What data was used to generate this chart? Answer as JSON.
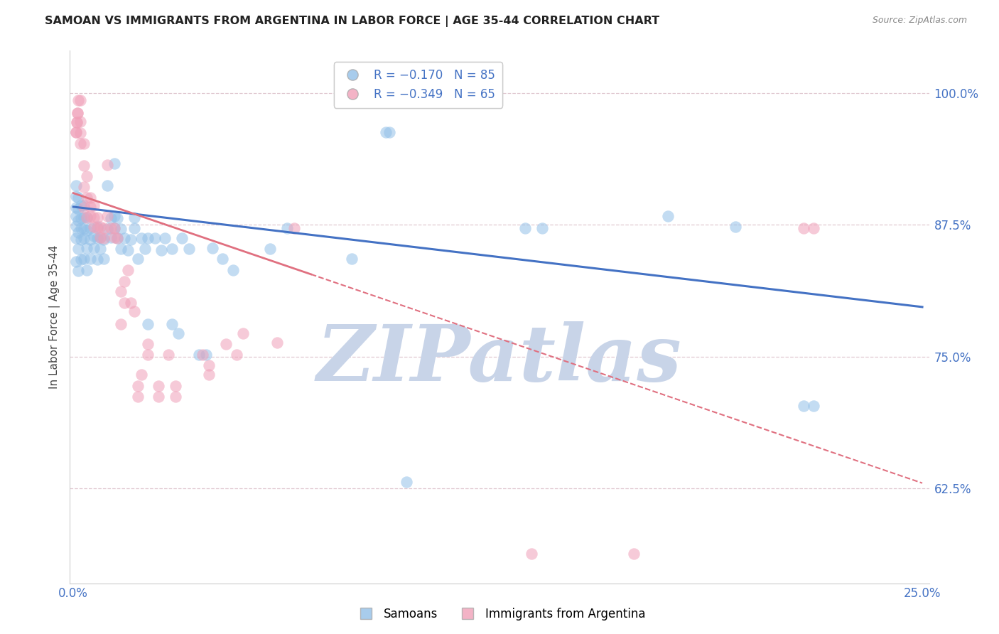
{
  "title": "SAMOAN VS IMMIGRANTS FROM ARGENTINA IN LABOR FORCE | AGE 35-44 CORRELATION CHART",
  "source_text": "Source: ZipAtlas.com",
  "ylabel": "In Labor Force | Age 35-44",
  "ytick_values": [
    1.0,
    0.875,
    0.75,
    0.625
  ],
  "ylim": [
    0.535,
    1.04
  ],
  "xlim": [
    -0.001,
    0.252
  ],
  "legend_label_samoans": "Samoans",
  "legend_label_arg": "Immigrants from Argentina",
  "blue_color": "#92c0e8",
  "pink_color": "#f0a0b8",
  "blue_line_color": "#4472c4",
  "pink_line_color": "#e07080",
  "grid_color": "#e0c8d0",
  "watermark_text": "ZIPatlas",
  "watermark_color": "#c8d4e8",
  "blue_intercept": 0.892,
  "blue_slope": -0.38,
  "pink_intercept": 0.905,
  "pink_slope": -1.1,
  "pink_line_solid_end": 0.07,
  "blue_dots": [
    [
      0.0008,
      0.84
    ],
    [
      0.0008,
      0.862
    ],
    [
      0.0008,
      0.874
    ],
    [
      0.0008,
      0.883
    ],
    [
      0.0008,
      0.891
    ],
    [
      0.0008,
      0.902
    ],
    [
      0.0008,
      0.912
    ],
    [
      0.0015,
      0.831
    ],
    [
      0.0015,
      0.852
    ],
    [
      0.0015,
      0.868
    ],
    [
      0.0015,
      0.879
    ],
    [
      0.0015,
      0.89
    ],
    [
      0.0015,
      0.901
    ],
    [
      0.0022,
      0.842
    ],
    [
      0.0022,
      0.861
    ],
    [
      0.0022,
      0.872
    ],
    [
      0.0022,
      0.881
    ],
    [
      0.0022,
      0.893
    ],
    [
      0.003,
      0.843
    ],
    [
      0.003,
      0.862
    ],
    [
      0.003,
      0.871
    ],
    [
      0.003,
      0.882
    ],
    [
      0.003,
      0.893
    ],
    [
      0.004,
      0.832
    ],
    [
      0.004,
      0.853
    ],
    [
      0.004,
      0.87
    ],
    [
      0.004,
      0.882
    ],
    [
      0.005,
      0.843
    ],
    [
      0.005,
      0.861
    ],
    [
      0.005,
      0.872
    ],
    [
      0.006,
      0.853
    ],
    [
      0.006,
      0.864
    ],
    [
      0.007,
      0.842
    ],
    [
      0.007,
      0.862
    ],
    [
      0.007,
      0.873
    ],
    [
      0.008,
      0.852
    ],
    [
      0.008,
      0.863
    ],
    [
      0.009,
      0.843
    ],
    [
      0.009,
      0.861
    ],
    [
      0.01,
      0.871
    ],
    [
      0.01,
      0.912
    ],
    [
      0.011,
      0.863
    ],
    [
      0.011,
      0.881
    ],
    [
      0.012,
      0.872
    ],
    [
      0.012,
      0.883
    ],
    [
      0.012,
      0.933
    ],
    [
      0.013,
      0.862
    ],
    [
      0.013,
      0.881
    ],
    [
      0.014,
      0.852
    ],
    [
      0.014,
      0.871
    ],
    [
      0.015,
      0.862
    ],
    [
      0.016,
      0.851
    ],
    [
      0.017,
      0.861
    ],
    [
      0.018,
      0.872
    ],
    [
      0.018,
      0.882
    ],
    [
      0.019,
      0.843
    ],
    [
      0.02,
      0.862
    ],
    [
      0.021,
      0.852
    ],
    [
      0.022,
      0.781
    ],
    [
      0.022,
      0.862
    ],
    [
      0.024,
      0.862
    ],
    [
      0.026,
      0.851
    ],
    [
      0.027,
      0.862
    ],
    [
      0.029,
      0.781
    ],
    [
      0.029,
      0.852
    ],
    [
      0.031,
      0.772
    ],
    [
      0.032,
      0.862
    ],
    [
      0.034,
      0.852
    ],
    [
      0.037,
      0.752
    ],
    [
      0.039,
      0.752
    ],
    [
      0.041,
      0.853
    ],
    [
      0.044,
      0.843
    ],
    [
      0.047,
      0.832
    ],
    [
      0.058,
      0.852
    ],
    [
      0.063,
      0.872
    ],
    [
      0.082,
      0.843
    ],
    [
      0.092,
      0.963
    ],
    [
      0.093,
      0.963
    ],
    [
      0.098,
      0.631
    ],
    [
      0.133,
      0.872
    ],
    [
      0.138,
      0.872
    ],
    [
      0.175,
      0.883
    ],
    [
      0.195,
      0.873
    ],
    [
      0.215,
      0.703
    ],
    [
      0.218,
      0.703
    ]
  ],
  "pink_dots": [
    [
      0.0008,
      0.963
    ],
    [
      0.0008,
      0.963
    ],
    [
      0.001,
      0.972
    ],
    [
      0.001,
      0.972
    ],
    [
      0.0012,
      0.981
    ],
    [
      0.0012,
      0.981
    ],
    [
      0.0015,
      0.993
    ],
    [
      0.002,
      0.952
    ],
    [
      0.002,
      0.962
    ],
    [
      0.002,
      0.973
    ],
    [
      0.002,
      0.993
    ],
    [
      0.003,
      0.891
    ],
    [
      0.003,
      0.911
    ],
    [
      0.003,
      0.931
    ],
    [
      0.003,
      0.952
    ],
    [
      0.004,
      0.882
    ],
    [
      0.004,
      0.901
    ],
    [
      0.004,
      0.921
    ],
    [
      0.005,
      0.883
    ],
    [
      0.005,
      0.892
    ],
    [
      0.005,
      0.901
    ],
    [
      0.006,
      0.873
    ],
    [
      0.006,
      0.882
    ],
    [
      0.006,
      0.893
    ],
    [
      0.007,
      0.872
    ],
    [
      0.007,
      0.882
    ],
    [
      0.008,
      0.863
    ],
    [
      0.008,
      0.873
    ],
    [
      0.009,
      0.862
    ],
    [
      0.009,
      0.872
    ],
    [
      0.01,
      0.883
    ],
    [
      0.01,
      0.932
    ],
    [
      0.011,
      0.872
    ],
    [
      0.012,
      0.863
    ],
    [
      0.012,
      0.872
    ],
    [
      0.013,
      0.862
    ],
    [
      0.014,
      0.781
    ],
    [
      0.014,
      0.812
    ],
    [
      0.015,
      0.801
    ],
    [
      0.015,
      0.821
    ],
    [
      0.016,
      0.832
    ],
    [
      0.017,
      0.801
    ],
    [
      0.018,
      0.793
    ],
    [
      0.019,
      0.712
    ],
    [
      0.019,
      0.722
    ],
    [
      0.02,
      0.733
    ],
    [
      0.022,
      0.752
    ],
    [
      0.022,
      0.762
    ],
    [
      0.025,
      0.712
    ],
    [
      0.025,
      0.722
    ],
    [
      0.028,
      0.752
    ],
    [
      0.03,
      0.712
    ],
    [
      0.03,
      0.722
    ],
    [
      0.038,
      0.752
    ],
    [
      0.04,
      0.733
    ],
    [
      0.04,
      0.742
    ],
    [
      0.045,
      0.762
    ],
    [
      0.048,
      0.752
    ],
    [
      0.05,
      0.772
    ],
    [
      0.06,
      0.763
    ],
    [
      0.065,
      0.872
    ],
    [
      0.135,
      0.563
    ],
    [
      0.165,
      0.563
    ],
    [
      0.215,
      0.872
    ],
    [
      0.218,
      0.872
    ]
  ]
}
